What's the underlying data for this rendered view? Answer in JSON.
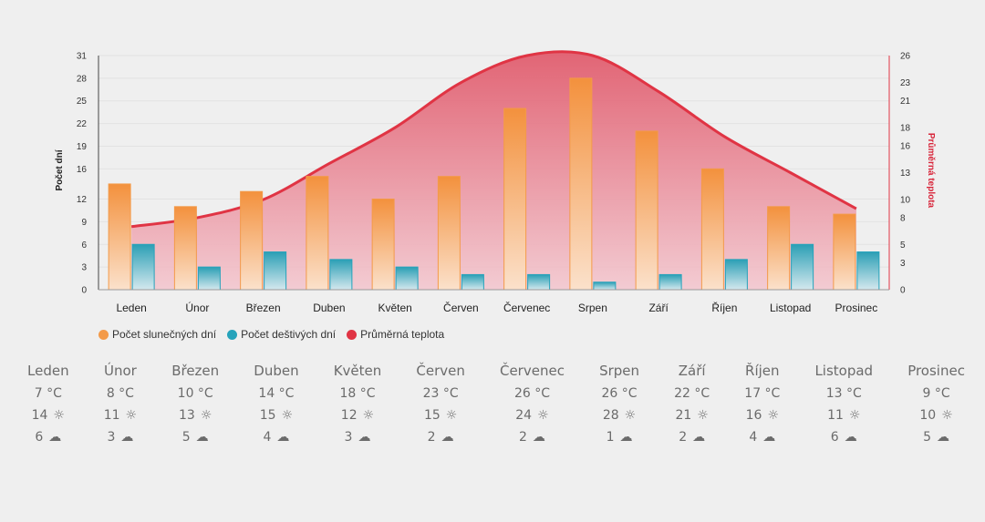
{
  "colors": {
    "sunny": "#f39a49",
    "rainy": "#25a3bb",
    "temp": "#e03444",
    "grid": "#e2e2e2",
    "axis_text": "#333333",
    "temp_axis_text": "#d8253a"
  },
  "legend": {
    "sunny": "Počet slunečných dní",
    "rainy": "Počet deštivých dní",
    "temp": "Průměrná teplota"
  },
  "chart_data": {
    "type": "bar",
    "categories": [
      "Leden",
      "Únor",
      "Březen",
      "Duben",
      "Květen",
      "Červen",
      "Červenec",
      "Srpen",
      "Září",
      "Říjen",
      "Listopad",
      "Prosinec"
    ],
    "series": [
      {
        "name": "Počet slunečných dní",
        "type": "bar",
        "axis": "left",
        "values": [
          14,
          11,
          13,
          15,
          12,
          15,
          24,
          28,
          21,
          16,
          11,
          10
        ]
      },
      {
        "name": "Počet deštivých dní",
        "type": "bar",
        "axis": "left",
        "values": [
          6,
          3,
          5,
          4,
          3,
          2,
          2,
          1,
          2,
          4,
          6,
          5
        ]
      },
      {
        "name": "Průměrná teplota",
        "type": "area",
        "axis": "right",
        "values": [
          7,
          8,
          10,
          14,
          18,
          23,
          26,
          26,
          22,
          17,
          13,
          9
        ]
      }
    ],
    "ylabel": "Počet dní",
    "y2label": "Průměrná teplota",
    "ylim": [
      0,
      31
    ],
    "y2lim": [
      0,
      26
    ],
    "yticks": [
      "0",
      "3",
      "6",
      "9",
      "12",
      "16",
      "19",
      "22",
      "25",
      "28",
      "31"
    ],
    "y2ticks": [
      "0",
      "3",
      "5",
      "8",
      "10",
      "13",
      "16",
      "18",
      "21",
      "23",
      "26"
    ],
    "grid": true,
    "legend_position": "bottom-left"
  },
  "table": [
    {
      "month": "Leden",
      "temp": "7 °C",
      "sun": "14",
      "rain": "6"
    },
    {
      "month": "Únor",
      "temp": "8 °C",
      "sun": "11",
      "rain": "3"
    },
    {
      "month": "Březen",
      "temp": "10 °C",
      "sun": "13",
      "rain": "5"
    },
    {
      "month": "Duben",
      "temp": "14 °C",
      "sun": "15",
      "rain": "4"
    },
    {
      "month": "Květen",
      "temp": "18 °C",
      "sun": "12",
      "rain": "3"
    },
    {
      "month": "Červen",
      "temp": "23 °C",
      "sun": "15",
      "rain": "2"
    },
    {
      "month": "Červenec",
      "temp": "26 °C",
      "sun": "24",
      "rain": "2"
    },
    {
      "month": "Srpen",
      "temp": "26 °C",
      "sun": "28",
      "rain": "1"
    },
    {
      "month": "Září",
      "temp": "22 °C",
      "sun": "21",
      "rain": "2"
    },
    {
      "month": "Říjen",
      "temp": "17 °C",
      "sun": "16",
      "rain": "4"
    },
    {
      "month": "Listopad",
      "temp": "13 °C",
      "sun": "11",
      "rain": "6"
    },
    {
      "month": "Prosinec",
      "temp": "9 °C",
      "sun": "10",
      "rain": "5"
    }
  ],
  "icons": {
    "sun": "sun-icon",
    "rain": "cloud-rain-icon"
  }
}
